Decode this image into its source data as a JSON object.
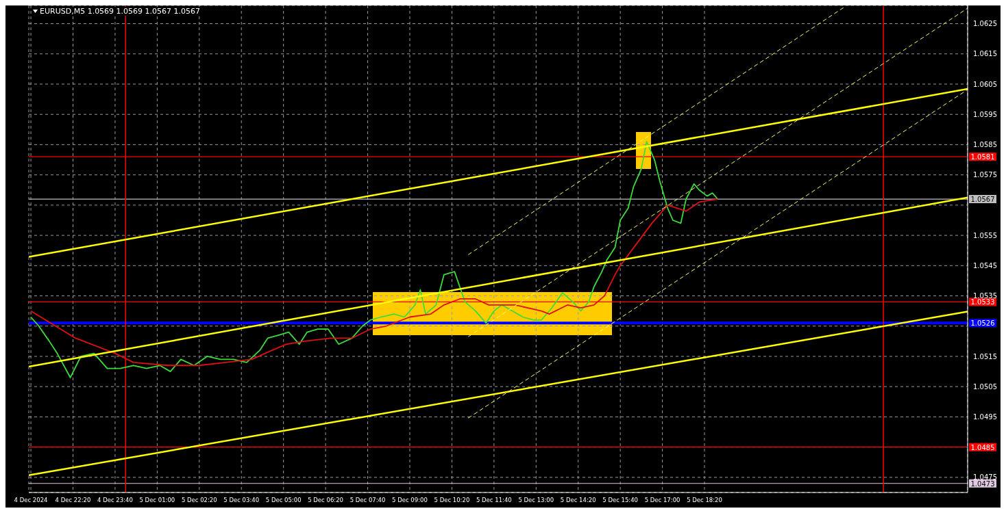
{
  "chart_data": {
    "type": "line",
    "title": "EURUSD,M5  1.0569 1.0569 1.0567 1.0567",
    "xlim": [
      "2024-12-04T20:56",
      "2024-12-06T02:40"
    ],
    "xticks": [
      {
        "value": "2024-12-04T21:00",
        "label": "4 Dec 2024"
      },
      {
        "value": "2024-12-04T22:20",
        "label": "4 Dec 22:20"
      },
      {
        "value": "2024-12-04T23:40",
        "label": "4 Dec 23:40"
      },
      {
        "value": "2024-12-05T01:00",
        "label": "5 Dec 01:00"
      },
      {
        "value": "2024-12-05T02:20",
        "label": "5 Dec 02:20"
      },
      {
        "value": "2024-12-05T03:40",
        "label": "5 Dec 03:40"
      },
      {
        "value": "2024-12-05T05:00",
        "label": "5 Dec 05:00"
      },
      {
        "value": "2024-12-05T06:20",
        "label": "5 Dec 06:20"
      },
      {
        "value": "2024-12-05T07:40",
        "label": "5 Dec 07:40"
      },
      {
        "value": "2024-12-05T09:00",
        "label": "5 Dec 09:00"
      },
      {
        "value": "2024-12-05T10:20",
        "label": "5 Dec 10:20"
      },
      {
        "value": "2024-12-05T11:40",
        "label": "5 Dec 11:40"
      },
      {
        "value": "2024-12-05T13:00",
        "label": "5 Dec 13:00"
      },
      {
        "value": "2024-12-05T14:20",
        "label": "5 Dec 14:20"
      },
      {
        "value": "2024-12-05T15:40",
        "label": "5 Dec 15:40"
      },
      {
        "value": "2024-12-05T17:00",
        "label": "5 Dec 17:00"
      },
      {
        "value": "2024-12-05T18:20",
        "label": "5 Dec 18:20"
      }
    ],
    "ylim": [
      1.047,
      1.0631
    ],
    "yticks": [
      1.0475,
      {
        "value": 1.0485,
        "label": null
      },
      1.0495,
      1.0505,
      1.0515,
      {
        "value": 1.0525,
        "label": null
      },
      1.0535,
      1.0545,
      1.0555,
      {
        "value": 1.0565,
        "label": null
      },
      1.0575,
      1.0585,
      1.0595,
      1.0605,
      1.0615,
      1.0625
    ],
    "grid": true,
    "marker": "none",
    "series": [
      {
        "color": "#3cdc3c",
        "line_style": "solid",
        "x": [
          "2024-12-04T21:00",
          "2024-12-04T21:15",
          "2024-12-04T21:35",
          "2024-12-04T21:50",
          "2024-12-04T22:15",
          "2024-12-04T22:35",
          "2024-12-04T23:00",
          "2024-12-04T23:25",
          "2024-12-04T23:50",
          "2024-12-05T00:15",
          "2024-12-05T00:40",
          "2024-12-05T01:05",
          "2024-12-05T01:25",
          "2024-12-05T01:45",
          "2024-12-05T02:10",
          "2024-12-05T02:35",
          "2024-12-05T03:00",
          "2024-12-05T03:25",
          "2024-12-05T03:50",
          "2024-12-05T04:15",
          "2024-12-05T04:30",
          "2024-12-05T04:50",
          "2024-12-05T05:10",
          "2024-12-05T05:30",
          "2024-12-05T05:45",
          "2024-12-05T06:05",
          "2024-12-05T06:25",
          "2024-12-05T06:45",
          "2024-12-05T07:10",
          "2024-12-05T07:30",
          "2024-12-05T07:45",
          "2024-12-05T08:05",
          "2024-12-05T08:30",
          "2024-12-05T08:50",
          "2024-12-05T09:10",
          "2024-12-05T09:20",
          "2024-12-05T09:30",
          "2024-12-05T09:50",
          "2024-12-05T10:05",
          "2024-12-05T10:25",
          "2024-12-05T10:35",
          "2024-12-05T10:45",
          "2024-12-05T11:05",
          "2024-12-05T11:25",
          "2024-12-05T11:40",
          "2024-12-05T11:55",
          "2024-12-05T12:15",
          "2024-12-05T12:35",
          "2024-12-05T12:55",
          "2024-12-05T13:10",
          "2024-12-05T13:30",
          "2024-12-05T13:50",
          "2024-12-05T14:10",
          "2024-12-05T14:25",
          "2024-12-05T14:40",
          "2024-12-05T14:50",
          "2024-12-05T15:05",
          "2024-12-05T15:15",
          "2024-12-05T15:30",
          "2024-12-05T15:40",
          "2024-12-05T15:55",
          "2024-12-05T16:05",
          "2024-12-05T16:20",
          "2024-12-05T16:30",
          "2024-12-05T16:45",
          "2024-12-05T16:55",
          "2024-12-05T17:10",
          "2024-12-05T17:20",
          "2024-12-05T17:35",
          "2024-12-05T17:45",
          "2024-12-05T18:00",
          "2024-12-05T18:10",
          "2024-12-05T18:25",
          "2024-12-05T18:35",
          "2024-12-05T18:45"
        ],
        "values": [
          1.0528,
          1.0525,
          1.052,
          1.0516,
          1.0508,
          1.0515,
          1.0516,
          1.0511,
          1.0511,
          1.0512,
          1.0511,
          1.0512,
          1.051,
          1.0514,
          1.0512,
          1.0515,
          1.0514,
          1.0514,
          1.0513,
          1.0517,
          1.0521,
          1.0522,
          1.0523,
          1.0519,
          1.0523,
          1.0524,
          1.0524,
          1.0519,
          1.0521,
          1.0525,
          1.0527,
          1.0528,
          1.0529,
          1.0528,
          1.0532,
          1.0537,
          1.0529,
          1.0532,
          1.0542,
          1.0543,
          1.0538,
          1.0533,
          1.053,
          1.0526,
          1.053,
          1.0532,
          1.053,
          1.0528,
          1.0527,
          1.0527,
          1.0531,
          1.0536,
          1.0533,
          1.053,
          1.0533,
          1.0538,
          1.0543,
          1.0547,
          1.0551,
          1.056,
          1.0564,
          1.0571,
          1.0577,
          1.0586,
          1.058,
          1.0573,
          1.0564,
          1.056,
          1.0559,
          1.0567,
          1.0572,
          1.057,
          1.0568,
          1.0569,
          1.0567
        ]
      },
      {
        "color": "#e01010",
        "line_style": "solid",
        "x": [
          "2024-12-04T21:00",
          "2024-12-04T22:25",
          "2024-12-04T23:40",
          "2024-12-05T00:15",
          "2024-12-05T01:20",
          "2024-12-05T02:20",
          "2024-12-05T03:10",
          "2024-12-05T04:00",
          "2024-12-05T04:25",
          "2024-12-05T05:05",
          "2024-12-05T05:40",
          "2024-12-05T06:30",
          "2024-12-05T07:10",
          "2024-12-05T07:45",
          "2024-12-05T08:15",
          "2024-12-05T09:00",
          "2024-12-05T09:40",
          "2024-12-05T10:05",
          "2024-12-05T10:35",
          "2024-12-05T11:05",
          "2024-12-05T11:30",
          "2024-12-05T12:20",
          "2024-12-05T13:10",
          "2024-12-05T13:25",
          "2024-12-05T14:00",
          "2024-12-05T14:25",
          "2024-12-05T14:50",
          "2024-12-05T15:10",
          "2024-12-05T15:30",
          "2024-12-05T15:40",
          "2024-12-05T16:10",
          "2024-12-05T16:40",
          "2024-12-05T17:10",
          "2024-12-05T17:45",
          "2024-12-05T18:10",
          "2024-12-05T18:45"
        ],
        "values": [
          1.053,
          1.0521,
          1.0516,
          1.0513,
          1.0512,
          1.0512,
          1.0513,
          1.0514,
          1.0516,
          1.0519,
          1.052,
          1.0521,
          1.0521,
          1.0524,
          1.0525,
          1.0528,
          1.0529,
          1.0532,
          1.0534,
          1.0534,
          1.0532,
          1.0532,
          1.053,
          1.0529,
          1.0532,
          1.0531,
          1.0532,
          1.0535,
          1.0542,
          1.0545,
          1.0552,
          1.0559,
          1.0565,
          1.0563,
          1.0566,
          1.0567
        ]
      },
      {
        "color": "#ffff00",
        "line_style": "solid",
        "x": [
          "2024-12-04T20:56",
          "2024-12-06T02:40"
        ],
        "values": [
          1.05479,
          1.06034
        ]
      },
      {
        "color": "#ffff00",
        "line_style": "solid",
        "x": [
          "2024-12-04T20:56",
          "2024-12-06T02:40"
        ],
        "values": [
          1.05116,
          1.05675
        ]
      },
      {
        "color": "#ffff00",
        "line_style": "solid",
        "x": [
          "2024-12-04T20:56",
          "2024-12-06T02:40"
        ],
        "values": [
          1.04757,
          1.05298
        ]
      },
      {
        "color": "#ffff66",
        "line_style": "dashed",
        "x": [
          "2024-12-05T10:51",
          "2024-12-05T22:46"
        ],
        "values": [
          1.05486,
          1.06305
        ]
      },
      {
        "color": "#ffff66",
        "line_style": "dashed",
        "x": [
          "2024-12-05T10:51",
          "2024-12-06T02:40"
        ],
        "values": [
          1.05215,
          1.06301
        ]
      },
      {
        "color": "#ffff66",
        "line_style": "dashed",
        "x": [
          "2024-12-05T10:51",
          "2024-12-06T02:40"
        ],
        "values": [
          1.04946,
          1.06032
        ]
      }
    ],
    "ref_lines": [
      {
        "axis": "y",
        "value": 1.0581,
        "label": "1.0581",
        "color": "#ff0000"
      },
      {
        "axis": "y",
        "value": 1.0567,
        "label": "1.0567",
        "color": "#c0c0c0"
      },
      {
        "axis": "y",
        "value": 1.0533,
        "label": "1.0533",
        "color": "#ff0000"
      },
      {
        "axis": "y",
        "value": 1.0526,
        "label": "1.0526",
        "color": "#0000ff"
      },
      {
        "axis": "y",
        "value": 1.0485,
        "label": "1.0485",
        "color": "#ff0000"
      },
      {
        "axis": "y",
        "value": 1.0473,
        "label": "1.0473",
        "color": "#e0c8e0"
      },
      {
        "axis": "x",
        "value": "2024-12-05T00:00",
        "color": "#ff0000"
      },
      {
        "axis": "x",
        "value": "2024-12-06T00:00",
        "color": "#ff0000"
      }
    ]
  }
}
